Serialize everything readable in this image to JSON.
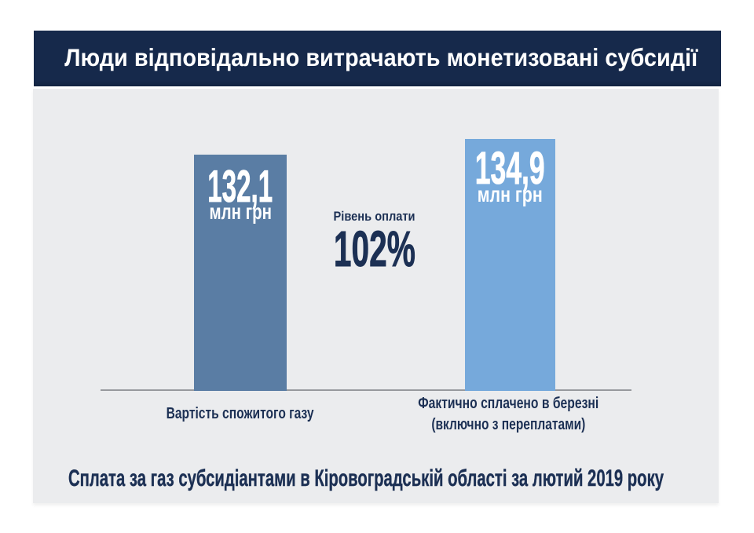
{
  "header": {
    "title": "Люди відповідально витрачають монетизовані субсидії",
    "bg_color": "#16294b",
    "text_color": "#ffffff"
  },
  "chart_data": {
    "type": "bar",
    "title": "Люди відповідально витрачають монетизовані субсидії",
    "categories": [
      "Вартість спожитого газу",
      "Фактично сплачено в березні (включно з переплатами)"
    ],
    "values": [
      132.1,
      134.9
    ],
    "unit": "млн грн",
    "bar_colors": [
      "#5a7da4",
      "#76a9db"
    ],
    "center_annotation": {
      "label": "Рівень оплати",
      "value": "102%"
    },
    "caption": "Сплата за газ субсидіантами в Кіровоградській області за лютий 2019 року",
    "background": "#ebecee",
    "legend": "off",
    "grid": "off"
  },
  "bars": [
    {
      "value_label": "132,1",
      "unit_label": "млн грн",
      "axis_label_lines": [
        "Вартість спожитого газу"
      ],
      "color": "#5a7da4"
    },
    {
      "value_label": "134,9",
      "unit_label": "млн грн",
      "axis_label_lines": [
        "Фактично сплачено в березні",
        "(включно з переплатами)"
      ],
      "color": "#76a9db"
    }
  ],
  "middle": {
    "label": "Рівень оплати",
    "value": "102%"
  },
  "caption": {
    "text": "Сплата за газ субсидіантами в Кіровоградській області за лютий 2019 року"
  }
}
